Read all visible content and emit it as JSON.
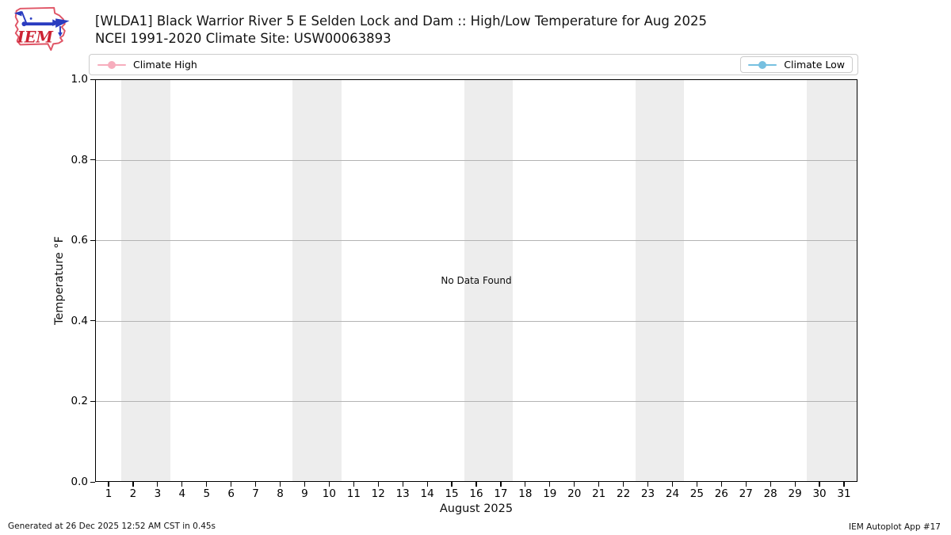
{
  "header": {
    "title_line1": "[WLDA1] Black Warrior River 5 E Selden Lock and Dam :: High/Low Temperature for Aug 2025",
    "title_line2": "NCEI 1991-2020 Climate Site: USW00063893",
    "logo_text": "IEM"
  },
  "legend": {
    "high_label": "Climate High",
    "low_label": "Climate Low",
    "high_color": "#f7adbd",
    "low_color": "#77c0e0"
  },
  "chart_data": {
    "type": "line",
    "title": "[WLDA1] Black Warrior River 5 E Selden Lock and Dam :: High/Low Temperature for Aug 2025",
    "subtitle": "NCEI 1991-2020 Climate Site: USW00063893",
    "xlabel": "August 2025",
    "ylabel": "Temperature °F",
    "no_data_text": "No Data Found",
    "x": [
      1,
      2,
      3,
      4,
      5,
      6,
      7,
      8,
      9,
      10,
      11,
      12,
      13,
      14,
      15,
      16,
      17,
      18,
      19,
      20,
      21,
      22,
      23,
      24,
      25,
      26,
      27,
      28,
      29,
      30,
      31
    ],
    "series": [
      {
        "name": "Climate High",
        "color": "#f7adbd",
        "values": []
      },
      {
        "name": "Climate Low",
        "color": "#77c0e0",
        "values": []
      }
    ],
    "ylim": [
      0.0,
      1.0
    ],
    "yticks": [
      0.0,
      0.2,
      0.4,
      0.6,
      0.8,
      1.0
    ],
    "xlim": [
      0.45,
      31.55
    ],
    "xticks": [
      1,
      2,
      3,
      4,
      5,
      6,
      7,
      8,
      9,
      10,
      11,
      12,
      13,
      14,
      15,
      16,
      17,
      18,
      19,
      20,
      21,
      22,
      23,
      24,
      25,
      26,
      27,
      28,
      29,
      30,
      31
    ],
    "grid": "horizontal",
    "legend_position": "top",
    "weekend_bands": [
      [
        1.5,
        3.5
      ],
      [
        8.5,
        10.5
      ],
      [
        15.5,
        17.5
      ],
      [
        22.5,
        24.5
      ],
      [
        29.5,
        31.55
      ]
    ],
    "band_color": "#ededed",
    "grid_color": "#b3b3b3"
  },
  "footer": {
    "generated": "Generated at 26 Dec 2025 12:52 AM CST in 0.45s",
    "app": "IEM Autoplot App #17"
  }
}
